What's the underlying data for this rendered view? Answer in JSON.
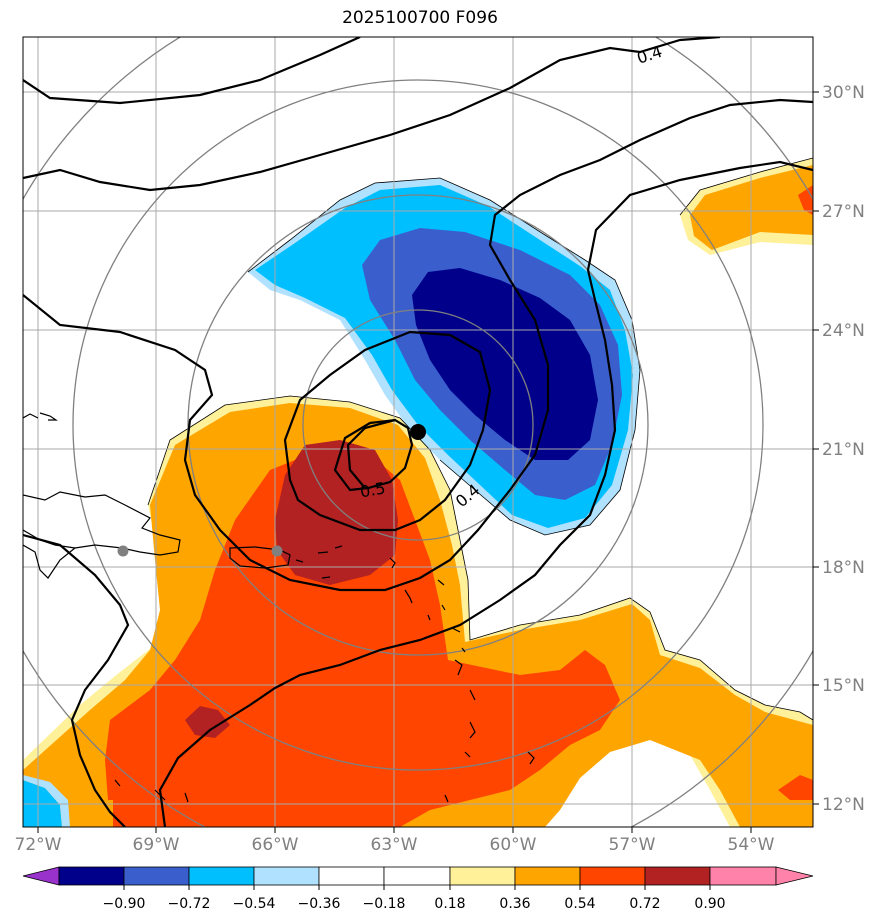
{
  "title": "2025100700 F096",
  "lon_labels": [
    "72°W",
    "69°W",
    "66°W",
    "63°W",
    "60°W",
    "57°W",
    "54°W"
  ],
  "lat_labels": [
    "30°N",
    "27°N",
    "24°N",
    "21°N",
    "18°N",
    "15°N",
    "12°N"
  ],
  "contour_labels": [
    "0.4",
    "0.5",
    "0.4"
  ],
  "colorbar": {
    "ticks": [
      "−0.90",
      "−0.72",
      "−0.54",
      "−0.36",
      "−0.18",
      "0.18",
      "0.36",
      "0.54",
      "0.72",
      "0.90"
    ],
    "colors": [
      "#9932cc",
      "#00008b",
      "#3a5fcd",
      "#00bfff",
      "#b0e2ff",
      "#ffffff",
      "#fff09a",
      "#ffa500",
      "#ff4500",
      "#b22222",
      "#ff82ab"
    ]
  },
  "storm_center": {
    "lon": -62.5,
    "lat": 21.5
  },
  "gray_points": [
    {
      "lon": -69.9,
      "lat": 18.4
    },
    {
      "lon": -66.0,
      "lat": 18.4
    }
  ]
}
